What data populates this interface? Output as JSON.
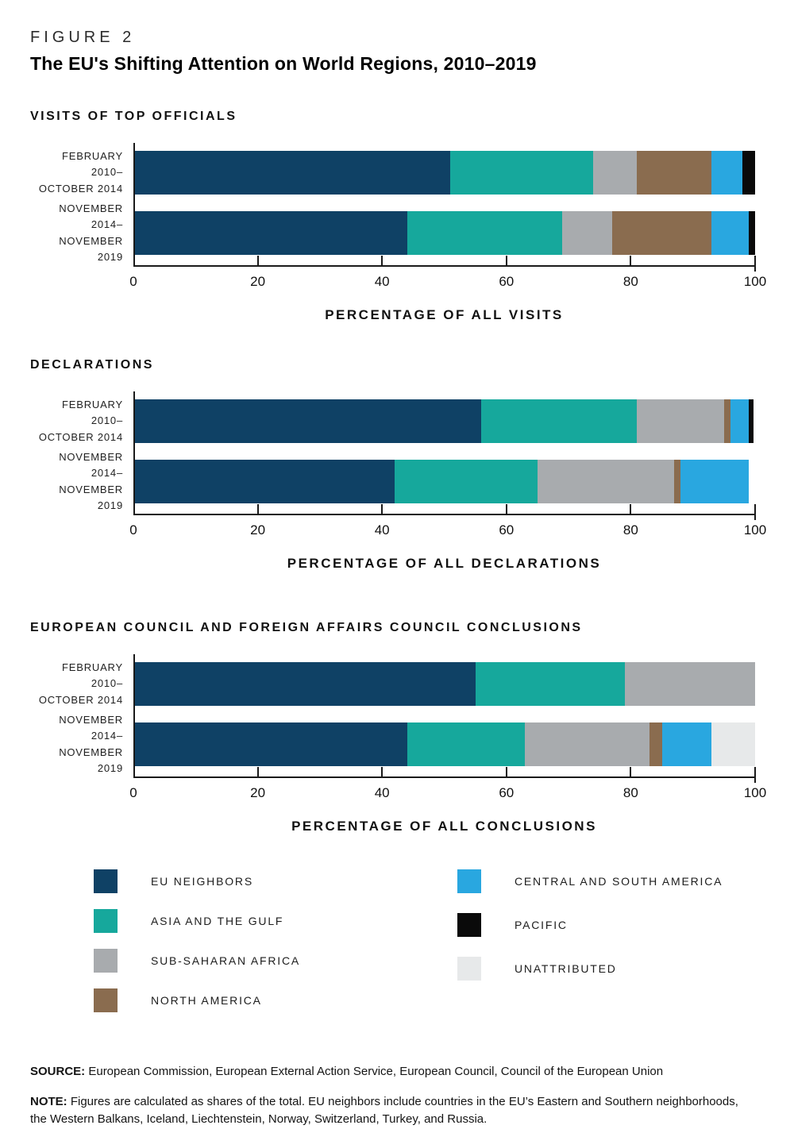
{
  "figure": {
    "label": "FIGURE 2",
    "title": "The EU's Shifting Attention on World Regions, 2010–2019"
  },
  "regions": [
    {
      "id": "eu-neighbors",
      "label": "EU NEIGHBORS",
      "color": "#0F4165"
    },
    {
      "id": "asia-gulf",
      "label": "ASIA AND THE GULF",
      "color": "#16A89C"
    },
    {
      "id": "sub-saharan-africa",
      "label": "SUB-SAHARAN AFRICA",
      "color": "#A8ABAE"
    },
    {
      "id": "north-america",
      "label": "NORTH AMERICA",
      "color": "#8A6C4F"
    },
    {
      "id": "central-south-america",
      "label": "CENTRAL AND SOUTH AMERICA",
      "color": "#29A7E0"
    },
    {
      "id": "pacific",
      "label": "PACIFIC",
      "color": "#0A0A0A"
    },
    {
      "id": "unattributed",
      "label": "UNATTRIBUTED",
      "color": "#E7E9EA"
    }
  ],
  "legend": {
    "left_column": [
      "eu-neighbors",
      "asia-gulf",
      "sub-saharan-africa",
      "north-america"
    ],
    "right_column": [
      "central-south-america",
      "pacific",
      "unattributed"
    ]
  },
  "chart_data": [
    {
      "type": "bar",
      "stacked": true,
      "orientation": "horizontal",
      "title": "VISITS OF TOP OFFICIALS",
      "xlabel": "PERCENTAGE OF ALL VISITS",
      "xlim": [
        0,
        100
      ],
      "xticks": [
        0,
        20,
        40,
        60,
        80,
        100
      ],
      "categories": [
        [
          "FEBRUARY 2010–",
          "OCTOBER 2014"
        ],
        [
          "NOVEMBER 2014–",
          "NOVEMBER 2019"
        ]
      ],
      "series": [
        {
          "region": "eu-neighbors",
          "values": [
            51,
            44
          ]
        },
        {
          "region": "asia-gulf",
          "values": [
            23,
            25
          ]
        },
        {
          "region": "sub-saharan-africa",
          "values": [
            7,
            8
          ]
        },
        {
          "region": "north-america",
          "values": [
            12,
            16
          ]
        },
        {
          "region": "central-south-america",
          "values": [
            5,
            6
          ]
        },
        {
          "region": "pacific",
          "values": [
            2,
            1
          ]
        },
        {
          "region": "unattributed",
          "values": [
            0,
            0
          ]
        }
      ]
    },
    {
      "type": "bar",
      "stacked": true,
      "orientation": "horizontal",
      "title": "DECLARATIONS",
      "xlabel": "PERCENTAGE OF ALL DECLARATIONS",
      "xlim": [
        0,
        100
      ],
      "xticks": [
        0,
        20,
        40,
        60,
        80,
        100
      ],
      "categories": [
        [
          "FEBRUARY 2010–",
          "OCTOBER 2014"
        ],
        [
          "NOVEMBER 2014–",
          "NOVEMBER 2019"
        ]
      ],
      "series": [
        {
          "region": "eu-neighbors",
          "values": [
            56,
            42
          ]
        },
        {
          "region": "asia-gulf",
          "values": [
            25,
            23
          ]
        },
        {
          "region": "sub-saharan-africa",
          "values": [
            14,
            22
          ]
        },
        {
          "region": "north-america",
          "values": [
            1,
            1
          ]
        },
        {
          "region": "central-south-america",
          "values": [
            3,
            11
          ]
        },
        {
          "region": "pacific",
          "values": [
            0.7,
            0
          ]
        },
        {
          "region": "unattributed",
          "values": [
            0,
            0
          ]
        }
      ]
    },
    {
      "type": "bar",
      "stacked": true,
      "orientation": "horizontal",
      "title": "EUROPEAN COUNCIL AND FOREIGN AFFAIRS COUNCIL CONCLUSIONS",
      "xlabel": "PERCENTAGE OF ALL CONCLUSIONS",
      "xlim": [
        0,
        100
      ],
      "xticks": [
        0,
        20,
        40,
        60,
        80,
        100
      ],
      "categories": [
        [
          "FEBRUARY 2010–",
          "OCTOBER 2014"
        ],
        [
          "NOVEMBER 2014–",
          "NOVEMBER 2019"
        ]
      ],
      "series": [
        {
          "region": "eu-neighbors",
          "values": [
            55,
            44
          ]
        },
        {
          "region": "asia-gulf",
          "values": [
            24,
            19
          ]
        },
        {
          "region": "sub-saharan-africa",
          "values": [
            21,
            20
          ]
        },
        {
          "region": "north-america",
          "values": [
            0,
            2
          ]
        },
        {
          "region": "central-south-america",
          "values": [
            0,
            8
          ]
        },
        {
          "region": "pacific",
          "values": [
            0,
            0
          ]
        },
        {
          "region": "unattributed",
          "values": [
            0,
            7
          ]
        }
      ]
    }
  ],
  "source": {
    "label": "SOURCE:",
    "text": "European Commission, European External Action Service, European Council, Council of the European Union"
  },
  "note": {
    "label": "NOTE:",
    "text": "Figures are calculated as shares of the total. EU neighbors include countries in the EU’s Eastern and Southern neighborhoods, the Western Balkans, Iceland, Liechtenstein, Norway, Switzerland, Turkey, and Russia."
  }
}
